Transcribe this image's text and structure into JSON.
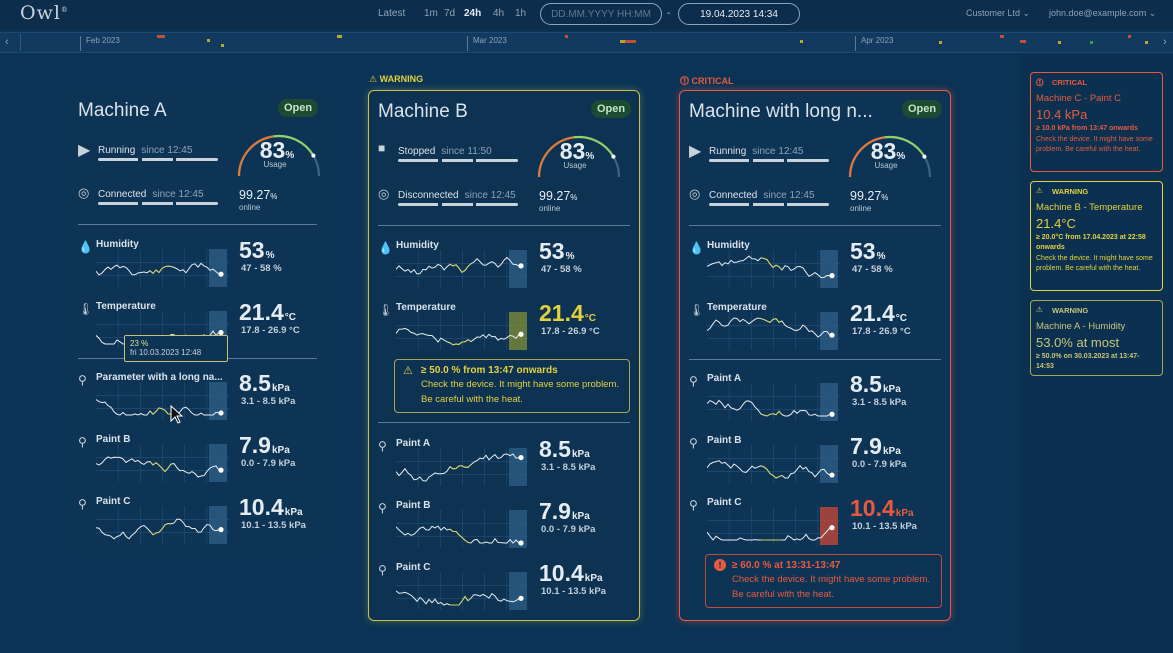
{
  "app": {
    "logo": "Owl",
    "logo_mark": "®"
  },
  "time_range": {
    "options": [
      "Latest",
      "1m",
      "7d",
      "24h",
      "4h",
      "1h"
    ],
    "active": "24h",
    "date_placeholder": "DD.MM.YYYY HH:MM",
    "separator": "-",
    "date_value": "19.04.2023 14:34"
  },
  "user": {
    "company": "Customer Ltd",
    "email": "john.doe@example.com"
  },
  "timeline": {
    "months": [
      "Feb 2023",
      "Mar 2023",
      "Apr 2023"
    ],
    "prev": "‹",
    "next": "›"
  },
  "colors": {
    "warning": "#e3d13d",
    "critical": "#e85a3f",
    "accent": "#f0a040",
    "ok": "#c3e6c3"
  },
  "cards": [
    {
      "header": "",
      "title": "Machine A",
      "badge": "Open",
      "status": {
        "label": "Running",
        "since": "since 12:45"
      },
      "connection": {
        "label": "Connected",
        "since": "since 12:45",
        "value": "99.27",
        "unit": "%",
        "sub": "online"
      },
      "usage": {
        "value": "83",
        "unit": "%",
        "label": "Usage",
        "fraction": 0.83
      },
      "metrics": [
        {
          "name": "Humidity",
          "value": "53",
          "unit": "%",
          "range": "47 - 58 %"
        },
        {
          "name": "Temperature",
          "value": "21.4",
          "unit": "°C",
          "range": "17.8 - 26.9 °C"
        },
        {
          "name": "Parameter with a long na...",
          "value": "8.5",
          "unit": "kPa",
          "range": "3.1 - 8.5 kPa"
        },
        {
          "name": "Paint B",
          "value": "7.9",
          "unit": "kPa",
          "range": "0.0 - 7.9 kPa"
        },
        {
          "name": "Paint C",
          "value": "10.4",
          "unit": "kPa",
          "range": "10.1 - 13.5 kPa"
        }
      ],
      "tooltip": {
        "value": "23 %",
        "date": "fri 10.03.2023 12:48"
      }
    },
    {
      "header": "WARNING",
      "title": "Machine B",
      "badge": "Open",
      "status": {
        "label": "Stopped",
        "since": "since 11:50"
      },
      "connection": {
        "label": "Disconnected",
        "since": "since 12:45",
        "value": "99.27",
        "unit": "%",
        "sub": "online"
      },
      "usage": {
        "value": "83",
        "unit": "%",
        "label": "Usage",
        "fraction": 0.83
      },
      "metrics": [
        {
          "name": "Humidity",
          "value": "53",
          "unit": "%",
          "range": "47 - 58 %"
        },
        {
          "name": "Temperature",
          "value": "21.4",
          "unit": "°C",
          "range": "17.8 - 26.9 °C"
        },
        {
          "name": "Paint A",
          "value": "8.5",
          "unit": "kPa",
          "range": "3.1 - 8.5 kPa"
        },
        {
          "name": "Paint B",
          "value": "7.9",
          "unit": "kPa",
          "range": "0.0 - 7.9 kPa"
        },
        {
          "name": "Paint C",
          "value": "10.4",
          "unit": "kPa",
          "range": "10.1 - 13.5 kPa"
        }
      ],
      "alert": {
        "title": "≥ 50.0 % from 13:47 onwards",
        "body": "Check the device. It might have some problem. Be careful with the heat."
      }
    },
    {
      "header": "CRITICAL",
      "title": "Machine with long n...",
      "badge": "Open",
      "status": {
        "label": "Running",
        "since": "since 12:45"
      },
      "connection": {
        "label": "Connected",
        "since": "since 12:45",
        "value": "99.27",
        "unit": "%",
        "sub": "online"
      },
      "usage": {
        "value": "83",
        "unit": "%",
        "label": "Usage",
        "fraction": 0.83
      },
      "metrics": [
        {
          "name": "Humidity",
          "value": "53",
          "unit": "%",
          "range": "47 - 58 %"
        },
        {
          "name": "Temperature",
          "value": "21.4",
          "unit": "°C",
          "range": "17.8 - 26.9 °C"
        },
        {
          "name": "Paint A",
          "value": "8.5",
          "unit": "kPa",
          "range": "3.1 - 8.5 kPa"
        },
        {
          "name": "Paint B",
          "value": "7.9",
          "unit": "kPa",
          "range": "0.0 - 7.9 kPa"
        },
        {
          "name": "Paint C",
          "value": "10.4",
          "unit": "kPa",
          "range": "10.1 - 13.5 kPa"
        }
      ],
      "alert": {
        "title": "≥ 60.0 % at 13:31-13:47",
        "body": "Check the device. It might have some problem. Be careful with the heat."
      }
    }
  ],
  "side_alerts": [
    {
      "level": "CRITICAL",
      "name": "Machine C - Paint C",
      "value": "10.4 kPa",
      "since": "≥ 10.0 kPa from 13:47 onwards",
      "msg": "Check the device. It might have some problem. Be careful with the heat."
    },
    {
      "level": "WARNING",
      "name": "Machine B - Temperature",
      "value": "21.4°C",
      "since": "≥ 20.0°C from 17.04.2023 at 22:58 onwards",
      "msg": "Check the device. It might have some problem. Be careful with the heat."
    },
    {
      "level": "WARNING",
      "name": "Machine A - Humidity",
      "value": "53.0% at most",
      "since": "≥ 50.0% on 30.03.2023 at 13:47-14:53",
      "msg": ""
    }
  ]
}
